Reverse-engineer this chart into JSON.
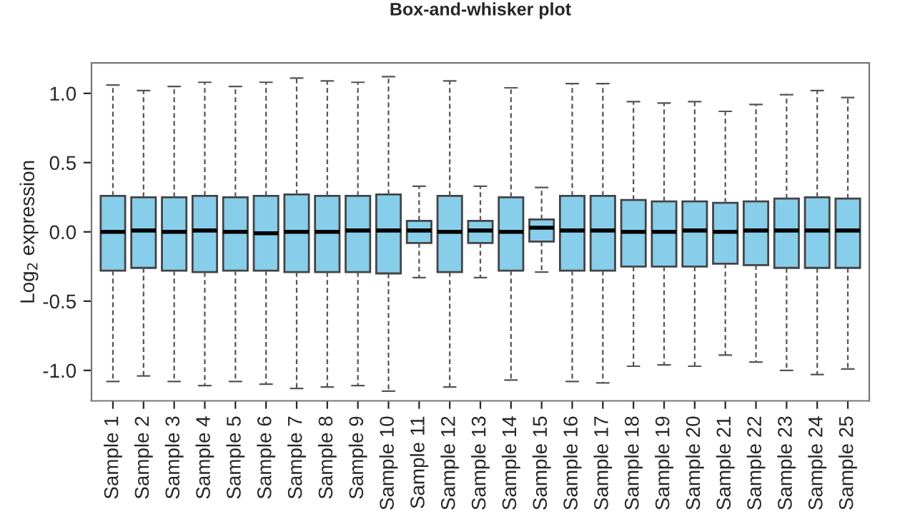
{
  "chart_data": {
    "type": "box",
    "title": "Box-and-whisker plot",
    "ylabel": "Log$_{2}$ expression",
    "categories": [
      "Sample 1",
      "Sample 2",
      "Sample 3",
      "Sample 4",
      "Sample 5",
      "Sample 6",
      "Sample 7",
      "Sample 8",
      "Sample 9",
      "Sample 10",
      "Sample 11",
      "Sample 12",
      "Sample 13",
      "Sample 14",
      "Sample 15",
      "Sample 16",
      "Sample 17",
      "Sample 18",
      "Sample 19",
      "Sample 20",
      "Sample 21",
      "Sample 22",
      "Sample 23",
      "Sample 24",
      "Sample 25"
    ],
    "color": "#87ceeb",
    "boxes": [
      {
        "low": -1.08,
        "q1": -0.28,
        "median": 0.0,
        "q3": 0.26,
        "high": 1.06
      },
      {
        "low": -1.04,
        "q1": -0.26,
        "median": 0.01,
        "q3": 0.25,
        "high": 1.02
      },
      {
        "low": -1.08,
        "q1": -0.28,
        "median": 0.0,
        "q3": 0.25,
        "high": 1.05
      },
      {
        "low": -1.11,
        "q1": -0.29,
        "median": 0.01,
        "q3": 0.26,
        "high": 1.08
      },
      {
        "low": -1.08,
        "q1": -0.28,
        "median": 0.0,
        "q3": 0.25,
        "high": 1.05
      },
      {
        "low": -1.1,
        "q1": -0.28,
        "median": -0.01,
        "q3": 0.26,
        "high": 1.08
      },
      {
        "low": -1.13,
        "q1": -0.29,
        "median": 0.0,
        "q3": 0.27,
        "high": 1.11
      },
      {
        "low": -1.12,
        "q1": -0.29,
        "median": 0.0,
        "q3": 0.26,
        "high": 1.09
      },
      {
        "low": -1.11,
        "q1": -0.29,
        "median": 0.01,
        "q3": 0.26,
        "high": 1.08
      },
      {
        "low": -1.15,
        "q1": -0.3,
        "median": 0.01,
        "q3": 0.27,
        "high": 1.12
      },
      {
        "low": -0.33,
        "q1": -0.08,
        "median": 0.01,
        "q3": 0.08,
        "high": 0.33
      },
      {
        "low": -1.12,
        "q1": -0.29,
        "median": 0.0,
        "q3": 0.26,
        "high": 1.09
      },
      {
        "low": -0.33,
        "q1": -0.08,
        "median": 0.01,
        "q3": 0.08,
        "high": 0.33
      },
      {
        "low": -1.07,
        "q1": -0.28,
        "median": 0.0,
        "q3": 0.25,
        "high": 1.04
      },
      {
        "low": -0.29,
        "q1": -0.07,
        "median": 0.03,
        "q3": 0.09,
        "high": 0.32
      },
      {
        "low": -1.08,
        "q1": -0.28,
        "median": 0.01,
        "q3": 0.26,
        "high": 1.07
      },
      {
        "low": -1.09,
        "q1": -0.28,
        "median": 0.01,
        "q3": 0.26,
        "high": 1.07
      },
      {
        "low": -0.97,
        "q1": -0.25,
        "median": 0.0,
        "q3": 0.23,
        "high": 0.94
      },
      {
        "low": -0.96,
        "q1": -0.25,
        "median": 0.0,
        "q3": 0.22,
        "high": 0.93
      },
      {
        "low": -0.97,
        "q1": -0.25,
        "median": 0.01,
        "q3": 0.22,
        "high": 0.94
      },
      {
        "low": -0.89,
        "q1": -0.23,
        "median": 0.0,
        "q3": 0.21,
        "high": 0.87
      },
      {
        "low": -0.94,
        "q1": -0.24,
        "median": 0.01,
        "q3": 0.22,
        "high": 0.92
      },
      {
        "low": -1.0,
        "q1": -0.26,
        "median": 0.01,
        "q3": 0.24,
        "high": 0.99
      },
      {
        "low": -1.03,
        "q1": -0.26,
        "median": 0.01,
        "q3": 0.25,
        "high": 1.02
      },
      {
        "low": -0.99,
        "q1": -0.26,
        "median": 0.01,
        "q3": 0.24,
        "high": 0.97
      }
    ],
    "ylim": [
      -1.22,
      1.22
    ],
    "yticks": [
      {
        "value": -1.0,
        "label": "-1.0"
      },
      {
        "value": -0.5,
        "label": "-0.5"
      },
      {
        "value": 0.0,
        "label": "0.0"
      },
      {
        "value": 0.5,
        "label": "0.5"
      },
      {
        "value": 1.0,
        "label": "1.0"
      }
    ],
    "grid": false,
    "line_style": "dashed"
  }
}
